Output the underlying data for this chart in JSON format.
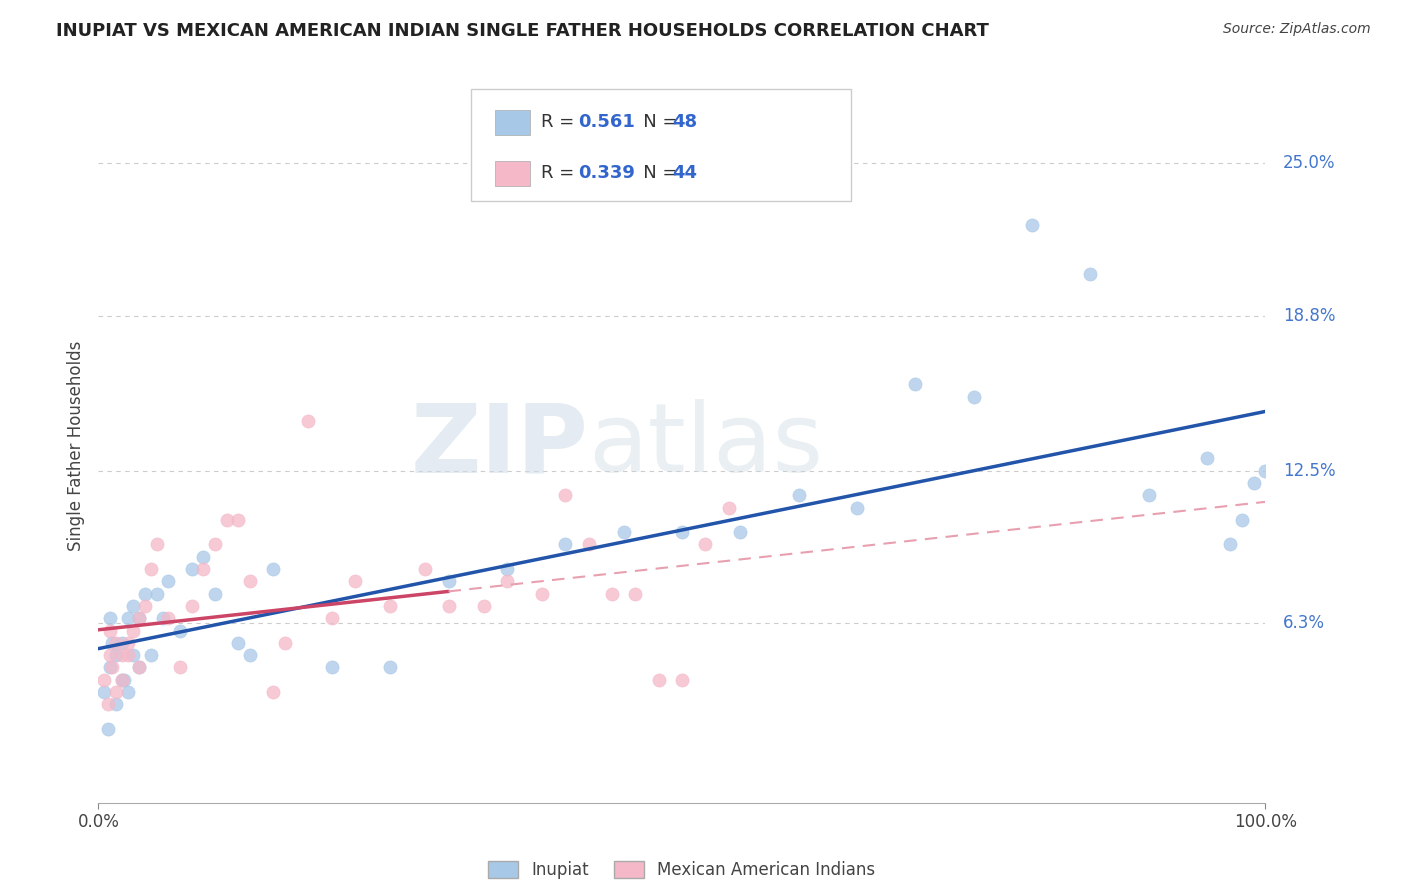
{
  "title": "INUPIAT VS MEXICAN AMERICAN INDIAN SINGLE FATHER HOUSEHOLDS CORRELATION CHART",
  "source": "Source: ZipAtlas.com",
  "ylabel": "Single Father Households",
  "xlim": [
    0,
    100
  ],
  "ylim": [
    -1,
    28
  ],
  "ytick_labels": [
    "6.3%",
    "12.5%",
    "18.8%",
    "25.0%"
  ],
  "ytick_values": [
    6.3,
    12.5,
    18.8,
    25.0
  ],
  "xtick_labels": [
    "0.0%",
    "100.0%"
  ],
  "xtick_values": [
    0,
    100
  ],
  "inupiat_color": "#a8c8e8",
  "mexican_color": "#f4b8c8",
  "inupiat_line_color": "#2255aa",
  "mexican_line_color": "#cc4466",
  "mexican_dash_color": "#e8a0b0",
  "background_color": "#ffffff",
  "grid_color": "#cccccc",
  "inupiat_x": [
    0.5,
    0.8,
    1.0,
    1.0,
    1.2,
    1.5,
    1.5,
    2.0,
    2.0,
    2.2,
    2.5,
    2.5,
    3.0,
    3.0,
    3.5,
    3.5,
    4.0,
    4.5,
    5.0,
    5.5,
    6.0,
    7.0,
    8.0,
    9.0,
    10.0,
    12.0,
    13.0,
    15.0,
    20.0,
    25.0,
    30.0,
    35.0,
    40.0,
    45.0,
    50.0,
    55.0,
    60.0,
    65.0,
    70.0,
    75.0,
    80.0,
    85.0,
    90.0,
    95.0,
    97.0,
    98.0,
    99.0,
    100.0
  ],
  "inupiat_y": [
    3.5,
    2.0,
    4.5,
    6.5,
    5.5,
    3.0,
    5.0,
    4.0,
    5.5,
    4.0,
    6.5,
    3.5,
    5.0,
    7.0,
    6.5,
    4.5,
    7.5,
    5.0,
    7.5,
    6.5,
    8.0,
    6.0,
    8.5,
    9.0,
    7.5,
    5.5,
    5.0,
    8.5,
    4.5,
    4.5,
    8.0,
    8.5,
    9.5,
    10.0,
    10.0,
    10.0,
    11.5,
    11.0,
    16.0,
    15.5,
    22.5,
    20.5,
    11.5,
    13.0,
    9.5,
    10.5,
    12.0,
    12.5
  ],
  "mexican_x": [
    0.5,
    0.8,
    1.0,
    1.0,
    1.2,
    1.5,
    1.5,
    2.0,
    2.0,
    2.5,
    2.5,
    3.0,
    3.5,
    3.5,
    4.0,
    4.5,
    5.0,
    6.0,
    7.0,
    8.0,
    9.0,
    10.0,
    11.0,
    12.0,
    13.0,
    15.0,
    16.0,
    18.0,
    20.0,
    22.0,
    25.0,
    28.0,
    30.0,
    33.0,
    35.0,
    38.0,
    40.0,
    42.0,
    44.0,
    46.0,
    48.0,
    50.0,
    52.0,
    54.0
  ],
  "mexican_y": [
    4.0,
    3.0,
    5.0,
    6.0,
    4.5,
    3.5,
    5.5,
    4.0,
    5.0,
    5.0,
    5.5,
    6.0,
    4.5,
    6.5,
    7.0,
    8.5,
    9.5,
    6.5,
    4.5,
    7.0,
    8.5,
    9.5,
    10.5,
    10.5,
    8.0,
    3.5,
    5.5,
    14.5,
    6.5,
    8.0,
    7.0,
    8.5,
    7.0,
    7.0,
    8.0,
    7.5,
    11.5,
    9.5,
    7.5,
    7.5,
    4.0,
    4.0,
    9.5,
    11.0
  ],
  "inupiat_R": "0.561",
  "inupiat_N": "48",
  "mexican_R": "0.339",
  "mexican_N": "44",
  "watermark_zip": "ZIP",
  "watermark_atlas": "atlas"
}
